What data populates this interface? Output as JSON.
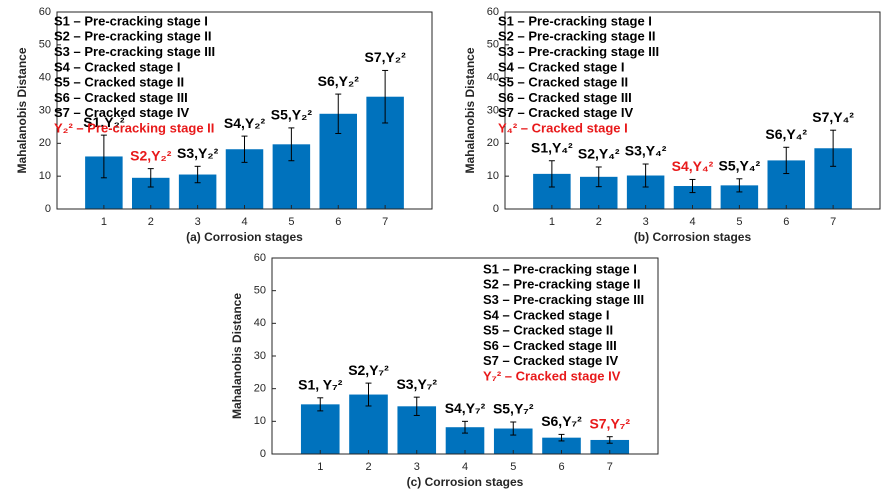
{
  "chart_data": [
    {
      "type": "bar",
      "xlabel": "(a) Corrosion stages",
      "ylabel": "Mahalanobis Distance",
      "categories": [
        "1",
        "2",
        "3",
        "4",
        "5",
        "6",
        "7"
      ],
      "values": [
        16,
        9.5,
        10.5,
        18.2,
        19.7,
        29,
        34.2
      ],
      "errors": [
        6.5,
        2.8,
        2.5,
        4,
        5,
        6,
        8
      ],
      "color": "#0072bd",
      "error_color": "#000000",
      "ylim": [
        0,
        60
      ],
      "xlim": [
        0,
        8
      ],
      "yticks": [
        0,
        10,
        20,
        30,
        40,
        50,
        60
      ],
      "annotations": [
        {
          "text": "S1,Y₂²",
          "color": "#000000"
        },
        {
          "text": "S2,Y₂²",
          "color": "#e8191a"
        },
        {
          "text": "S3,Y₂²",
          "color": "#000000"
        },
        {
          "text": "S4,Y₂²",
          "color": "#000000"
        },
        {
          "text": "S5,Y₂²",
          "color": "#000000"
        },
        {
          "text": "S6,Y₂²",
          "color": "#000000"
        },
        {
          "text": "S7,Y₂²",
          "color": "#000000"
        }
      ],
      "legend": [
        {
          "text": "S1 – Pre-cracking stage I",
          "color": "#000000"
        },
        {
          "text": "S2 – Pre-cracking stage II",
          "color": "#000000"
        },
        {
          "text": "S3 – Pre-cracking stage III",
          "color": "#000000"
        },
        {
          "text": "S4 – Cracked stage I",
          "color": "#000000"
        },
        {
          "text": "S5 – Cracked stage II",
          "color": "#000000"
        },
        {
          "text": "S6 – Cracked stage III",
          "color": "#000000"
        },
        {
          "text": "S7 – Cracked stage IV",
          "color": "#000000"
        },
        {
          "text": "Y₂² – Pre-cracking stage II",
          "color": "#e8191a"
        }
      ]
    },
    {
      "type": "bar",
      "xlabel": "(b) Corrosion stages",
      "ylabel": "Mahalanobis Distance",
      "categories": [
        "1",
        "2",
        "3",
        "4",
        "5",
        "6",
        "7"
      ],
      "values": [
        10.7,
        9.8,
        10.2,
        7,
        7.2,
        14.8,
        18.5
      ],
      "errors": [
        4,
        3,
        3.5,
        2,
        2,
        4,
        5.5
      ],
      "color": "#0072bd",
      "error_color": "#000000",
      "ylim": [
        0,
        60
      ],
      "xlim": [
        0,
        8
      ],
      "yticks": [
        0,
        10,
        20,
        30,
        40,
        50,
        60
      ],
      "annotations": [
        {
          "text": "S1,Y₄²",
          "color": "#000000"
        },
        {
          "text": "S2,Y₄²",
          "color": "#000000"
        },
        {
          "text": "S3,Y₄²",
          "color": "#000000"
        },
        {
          "text": "S4,Y₄²",
          "color": "#e8191a"
        },
        {
          "text": "S5,Y₄²",
          "color": "#000000"
        },
        {
          "text": "S6,Y₄²",
          "color": "#000000"
        },
        {
          "text": "S7,Y₄²",
          "color": "#000000"
        }
      ],
      "legend": [
        {
          "text": "S1 – Pre-cracking stage I",
          "color": "#000000"
        },
        {
          "text": "S2 – Pre-cracking stage II",
          "color": "#000000"
        },
        {
          "text": "S3 – Pre-cracking stage III",
          "color": "#000000"
        },
        {
          "text": "S4 – Cracked stage I",
          "color": "#000000"
        },
        {
          "text": "S5 – Cracked stage II",
          "color": "#000000"
        },
        {
          "text": "S6 – Cracked stage III",
          "color": "#000000"
        },
        {
          "text": "S7 – Cracked stage IV",
          "color": "#000000"
        },
        {
          "text": "Y₄² – Cracked stage I",
          "color": "#e8191a"
        }
      ]
    },
    {
      "type": "bar",
      "xlabel": "(c) Corrosion stages",
      "ylabel": "Mahalanobis Distance",
      "categories": [
        "1",
        "2",
        "3",
        "4",
        "5",
        "6",
        "7"
      ],
      "values": [
        15.2,
        18.2,
        14.6,
        8.2,
        7.8,
        5,
        4.3
      ],
      "errors": [
        2,
        3.5,
        2.8,
        1.8,
        2,
        1,
        1
      ],
      "color": "#0072bd",
      "error_color": "#000000",
      "ylim": [
        0,
        60
      ],
      "xlim": [
        0,
        8
      ],
      "yticks": [
        0,
        10,
        20,
        30,
        40,
        50,
        60
      ],
      "annotations": [
        {
          "text": "S1, Y₇²",
          "color": "#000000"
        },
        {
          "text": "S2,Y₇²",
          "color": "#000000"
        },
        {
          "text": "S3,Y₇²",
          "color": "#000000"
        },
        {
          "text": "S4,Y₇²",
          "color": "#000000"
        },
        {
          "text": "S5,Y₇²",
          "color": "#000000"
        },
        {
          "text": "S6,Y₇²",
          "color": "#000000"
        },
        {
          "text": "S7,Y₇²",
          "color": "#e8191a"
        }
      ],
      "legend": [
        {
          "text": "S1 – Pre-cracking stage I",
          "color": "#000000"
        },
        {
          "text": "S2 – Pre-cracking stage II",
          "color": "#000000"
        },
        {
          "text": "S3 – Pre-cracking stage III",
          "color": "#000000"
        },
        {
          "text": "S4 – Cracked stage I",
          "color": "#000000"
        },
        {
          "text": "S5 – Cracked stage II",
          "color": "#000000"
        },
        {
          "text": "S6 – Cracked stage III",
          "color": "#000000"
        },
        {
          "text": "S7 – Cracked stage IV",
          "color": "#000000"
        },
        {
          "text": "Y₇² – Cracked stage IV",
          "color": "#e8191a"
        }
      ]
    }
  ]
}
